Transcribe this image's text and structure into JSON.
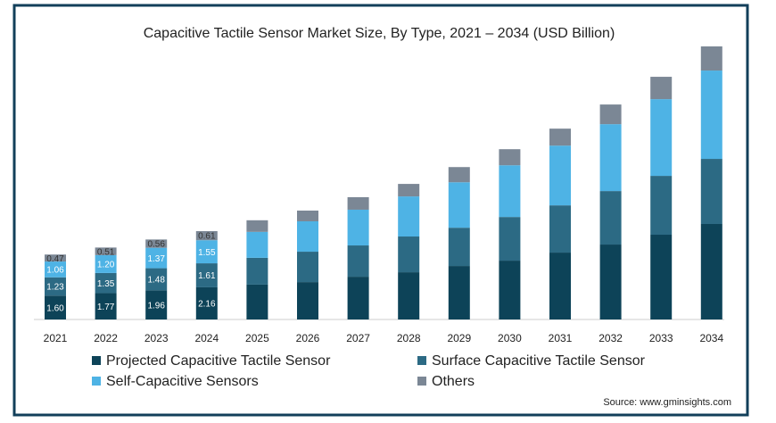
{
  "chart_data": {
    "type": "bar",
    "stacked": true,
    "title": "Capacitive Tactile Sensor Market Size, By Type, 2021 – 2034 (USD Billion)",
    "categories": [
      "2021",
      "2022",
      "2023",
      "2024",
      "2025",
      "2026",
      "2027",
      "2028",
      "2029",
      "2030",
      "2031",
      "2032",
      "2033",
      "2034"
    ],
    "series": [
      {
        "name": "Projected Capacitive Tactile Sensor",
        "color": "#0d4358",
        "values": [
          1.6,
          1.77,
          1.96,
          2.16,
          2.34,
          2.51,
          2.87,
          3.17,
          3.59,
          3.95,
          4.49,
          5.03,
          5.69,
          6.41
        ],
        "value_labels": [
          "1.60",
          "1.77",
          "1.96",
          "2.16",
          null,
          null,
          null,
          null,
          null,
          null,
          null,
          null,
          null,
          null
        ]
      },
      {
        "name": "Surface Capacitive Tactile Sensor",
        "color": "#2c6a84",
        "values": [
          1.23,
          1.35,
          1.48,
          1.61,
          1.8,
          2.04,
          2.1,
          2.4,
          2.57,
          2.93,
          3.17,
          3.59,
          3.95,
          4.37
        ],
        "value_labels": [
          "1.23",
          "1.35",
          "1.48",
          "1.61",
          null,
          null,
          null,
          null,
          null,
          null,
          null,
          null,
          null,
          null
        ]
      },
      {
        "name": "Self-Capacitive Sensors",
        "color": "#4eb3e5",
        "values": [
          1.06,
          1.2,
          1.37,
          1.55,
          1.74,
          2.04,
          2.4,
          2.69,
          3.05,
          3.47,
          4.01,
          4.49,
          5.15,
          5.93
        ],
        "value_labels": [
          "1.06",
          "1.20",
          "1.37",
          "1.55",
          null,
          null,
          null,
          null,
          null,
          null,
          null,
          null,
          null,
          null
        ]
      },
      {
        "name": "Others",
        "color": "#7b8795",
        "values": [
          0.47,
          0.51,
          0.56,
          0.61,
          0.78,
          0.72,
          0.84,
          0.84,
          1.02,
          1.08,
          1.14,
          1.32,
          1.5,
          1.62
        ],
        "value_labels": [
          "0.47",
          "0.51",
          "0.56",
          "0.61",
          null,
          null,
          null,
          null,
          null,
          null,
          null,
          null,
          null,
          null
        ]
      }
    ],
    "source": "Source: www.gminsights.com"
  }
}
